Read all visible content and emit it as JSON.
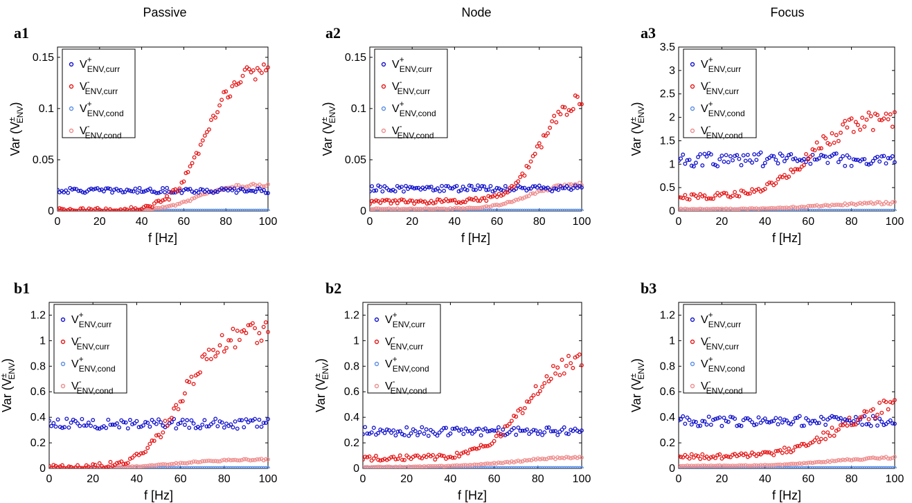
{
  "column_titles": [
    "Passive",
    "Node",
    "Focus"
  ],
  "legend_sup": [
    "+",
    "-",
    "+",
    "-"
  ],
  "legend_sub": [
    "ENV,curr",
    "ENV,curr",
    "ENV,cond",
    "ENV,cond"
  ],
  "legend_base": "V",
  "ylabel_main": "Var (V",
  "ylabel_sup": "±",
  "ylabel_sub": "ENV",
  "ylabel_close": ")",
  "xlabel": "f  [Hz]",
  "colors": {
    "curr_plus": "#1010cc",
    "curr_minus": "#e61515",
    "cond_plus": "#5b8ee6",
    "cond_minus": "#ee8c8c"
  },
  "chart_data": [
    {
      "type": "scatter",
      "panel": "a1",
      "title": "Passive",
      "xlabel": "f  [Hz]",
      "ylabel": "Var (V±ENV)",
      "xlim": [
        0,
        100
      ],
      "ylim": [
        0,
        0.16
      ],
      "xticks": [
        0,
        20,
        40,
        60,
        80,
        100
      ],
      "yticks": [
        0,
        0.05,
        0.1,
        0.15
      ],
      "ytick_labels": [
        "0",
        "0.05",
        "0.1",
        "0.15"
      ],
      "legend_position": "top-left",
      "series": [
        {
          "kind": "flat",
          "name": "V+ENV,curr",
          "level": 0.02,
          "noise": 0.0025
        },
        {
          "kind": "sigmoid",
          "name": "V-ENV,curr",
          "start": 0.0005,
          "end": 0.142,
          "center": 70,
          "width": 7.5,
          "noise": 0.006
        },
        {
          "kind": "flat",
          "name": "V+ENV,cond",
          "level": 0.0003,
          "noise": 0
        },
        {
          "kind": "sigmoid",
          "name": "V-ENV,cond",
          "start": 0.0003,
          "end": 0.026,
          "center": 66,
          "width": 8,
          "noise": 0.0012
        }
      ]
    },
    {
      "type": "scatter",
      "panel": "a2",
      "title": "Node",
      "xlabel": "f  [Hz]",
      "ylabel": "Var (V±ENV)",
      "xlim": [
        0,
        100
      ],
      "ylim": [
        0,
        0.16
      ],
      "xticks": [
        0,
        20,
        40,
        60,
        80,
        100
      ],
      "yticks": [
        0,
        0.05,
        0.1,
        0.15
      ],
      "ytick_labels": [
        "0",
        "0.05",
        "0.1",
        "0.15"
      ],
      "legend_position": "top-left",
      "series": [
        {
          "kind": "flat",
          "name": "V+ENV,curr",
          "level": 0.022,
          "noise": 0.003
        },
        {
          "kind": "sigmoid",
          "name": "V-ENV,curr",
          "start": 0.009,
          "end": 0.115,
          "center": 80,
          "width": 7,
          "noise": 0.006
        },
        {
          "kind": "flat",
          "name": "V+ENV,cond",
          "level": 0.0003,
          "noise": 0
        },
        {
          "kind": "sigmoid",
          "name": "V-ENV,cond",
          "start": 0.002,
          "end": 0.027,
          "center": 74,
          "width": 8,
          "noise": 0.0012
        }
      ]
    },
    {
      "type": "scatter",
      "panel": "a3",
      "title": "Focus",
      "xlabel": "f  [Hz]",
      "ylabel": "Var (V±ENV)",
      "xlim": [
        0,
        100
      ],
      "ylim": [
        0,
        3.5
      ],
      "xticks": [
        0,
        20,
        40,
        60,
        80,
        100
      ],
      "yticks": [
        0,
        0.5,
        1,
        1.5,
        2,
        2.5,
        3,
        3.5
      ],
      "ytick_labels": [
        "0",
        "0.5",
        "1",
        "1.5",
        "2",
        "2.5",
        "3",
        "3.5"
      ],
      "legend_position": "top-left",
      "series": [
        {
          "kind": "flat",
          "name": "V+ENV,curr",
          "level": 1.1,
          "noise": 0.15
        },
        {
          "kind": "sigmoid",
          "name": "V-ENV,curr",
          "start": 0.3,
          "end": 2.0,
          "center": 60,
          "width": 10,
          "noise": 0.15
        },
        {
          "kind": "flat",
          "name": "V+ENV,cond",
          "level": 0.005,
          "noise": 0
        },
        {
          "kind": "sigmoid",
          "name": "V-ENV,cond",
          "start": 0.04,
          "end": 0.18,
          "center": 65,
          "width": 12,
          "noise": 0.02
        }
      ]
    },
    {
      "type": "scatter",
      "panel": "b1",
      "title": "",
      "xlabel": "f  [Hz]",
      "ylabel": "Var (V±ENV)",
      "xlim": [
        0,
        100
      ],
      "ylim": [
        0,
        1.3
      ],
      "xticks": [
        0,
        20,
        40,
        60,
        80,
        100
      ],
      "yticks": [
        0,
        0.2,
        0.4,
        0.6,
        0.8,
        1,
        1.2
      ],
      "ytick_labels": [
        "0",
        "0.2",
        "0.4",
        "0.6",
        "0.8",
        "1",
        "1.2"
      ],
      "legend_position": "top-left",
      "series": [
        {
          "kind": "flat",
          "name": "V+ENV,curr",
          "level": 0.35,
          "noise": 0.04
        },
        {
          "kind": "sigmoid",
          "name": "V-ENV,curr",
          "start": 0.003,
          "end": 1.08,
          "center": 60,
          "width": 8.5,
          "noise": 0.06
        },
        {
          "kind": "flat",
          "name": "V+ENV,cond",
          "level": 0.002,
          "noise": 0
        },
        {
          "kind": "sigmoid",
          "name": "V-ENV,cond",
          "start": 0.003,
          "end": 0.072,
          "center": 58,
          "width": 12,
          "noise": 0.005
        }
      ]
    },
    {
      "type": "scatter",
      "panel": "b2",
      "title": "",
      "xlabel": "f  [Hz]",
      "ylabel": "Var (V±ENV)",
      "xlim": [
        0,
        100
      ],
      "ylim": [
        0,
        1.3
      ],
      "xticks": [
        0,
        20,
        40,
        60,
        80,
        100
      ],
      "yticks": [
        0,
        0.2,
        0.4,
        0.6,
        0.8,
        1,
        1.2
      ],
      "ytick_labels": [
        "0",
        "0.2",
        "0.4",
        "0.6",
        "0.8",
        "1",
        "1.2"
      ],
      "legend_position": "top-left",
      "series": [
        {
          "kind": "flat",
          "name": "V+ENV,curr",
          "level": 0.29,
          "noise": 0.035
        },
        {
          "kind": "sigmoid",
          "name": "V-ENV,curr",
          "start": 0.08,
          "end": 0.9,
          "center": 74,
          "width": 9,
          "noise": 0.05
        },
        {
          "kind": "flat",
          "name": "V+ENV,cond",
          "level": 0.002,
          "noise": 0
        },
        {
          "kind": "sigmoid",
          "name": "V-ENV,cond",
          "start": 0.01,
          "end": 0.1,
          "center": 70,
          "width": 14,
          "noise": 0.007
        }
      ]
    },
    {
      "type": "scatter",
      "panel": "b3",
      "title": "",
      "xlabel": "f  [Hz]",
      "ylabel": "Var (V±ENV)",
      "xlim": [
        0,
        100
      ],
      "ylim": [
        0,
        1.3
      ],
      "xticks": [
        0,
        20,
        40,
        60,
        80,
        100
      ],
      "yticks": [
        0,
        0.2,
        0.4,
        0.6,
        0.8,
        1,
        1.2
      ],
      "ytick_labels": [
        "0",
        "0.2",
        "0.4",
        "0.6",
        "0.8",
        "1",
        "1.2"
      ],
      "legend_position": "top-left",
      "series": [
        {
          "kind": "flat",
          "name": "V+ENV,curr",
          "level": 0.37,
          "noise": 0.04
        },
        {
          "kind": "sigmoid",
          "name": "V-ENV,curr",
          "start": 0.09,
          "end": 0.55,
          "center": 75,
          "width": 12,
          "noise": 0.05
        },
        {
          "kind": "flat",
          "name": "V+ENV,cond",
          "level": 0.002,
          "noise": 0
        },
        {
          "kind": "sigmoid",
          "name": "V-ENV,cond",
          "start": 0.02,
          "end": 0.09,
          "center": 70,
          "width": 12,
          "noise": 0.006
        }
      ]
    }
  ]
}
